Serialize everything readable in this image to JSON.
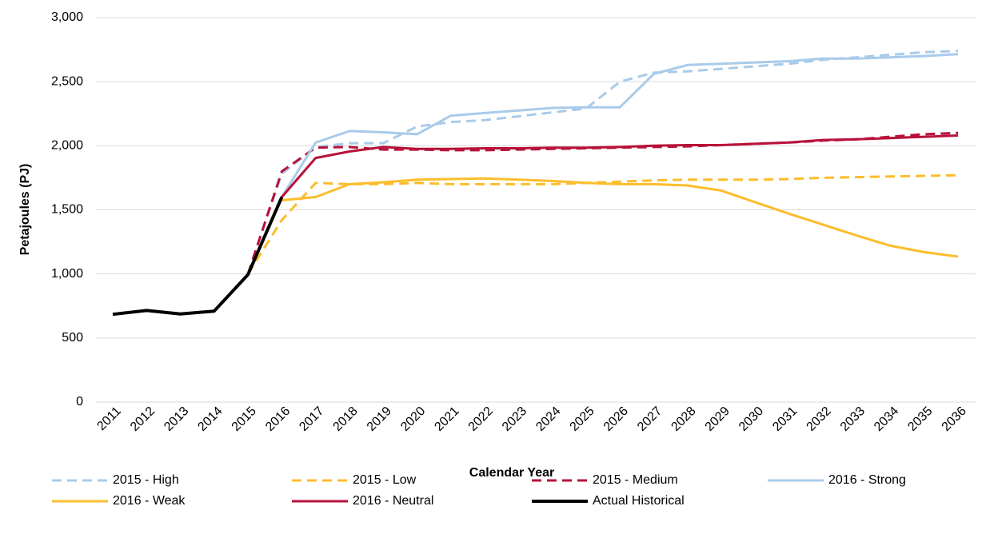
{
  "chart_data": {
    "type": "line",
    "y_label": "Petajoules (PJ)",
    "x_label": "Calendar Year",
    "categories": [
      "2011",
      "2012",
      "2013",
      "2014",
      "2015",
      "2016",
      "2017",
      "2018",
      "2019",
      "2020",
      "2021",
      "2022",
      "2023",
      "2024",
      "2025",
      "2026",
      "2027",
      "2028",
      "2029",
      "2030",
      "2031",
      "2032",
      "2033",
      "2034",
      "2035",
      "2036"
    ],
    "ylim": [
      0,
      3000
    ],
    "yticks": [
      0,
      500,
      {
        "value": 1000,
        "label": "1,000"
      },
      {
        "value": 1500,
        "label": "1,500"
      },
      {
        "value": 2000,
        "label": "2,000"
      },
      {
        "value": 2500,
        "label": "2,500"
      },
      {
        "value": 3000,
        "label": "3,000"
      }
    ],
    "grid": true,
    "legend": "bottom",
    "series": [
      {
        "name": "2015 - High",
        "color": "#a9cbea",
        "dashed": true,
        "values": [
          null,
          null,
          null,
          null,
          1000,
          1780,
          1990,
          2020,
          2020,
          2150,
          2185,
          2200,
          2230,
          2260,
          2290,
          2500,
          2570,
          2580,
          2600,
          2620,
          2640,
          2670,
          2690,
          2710,
          2730,
          2740
        ]
      },
      {
        "name": "2015 - Low",
        "color": "#fcbd2c",
        "dashed": true,
        "values": [
          null,
          null,
          null,
          null,
          1000,
          1420,
          1710,
          1700,
          1700,
          1710,
          1700,
          1700,
          1700,
          1700,
          1710,
          1720,
          1730,
          1735,
          1735,
          1735,
          1740,
          1750,
          1755,
          1760,
          1765,
          1770
        ]
      },
      {
        "name": "2015 - Medium",
        "color": "#b8123a",
        "dashed": true,
        "values": [
          null,
          null,
          null,
          null,
          1000,
          1800,
          1985,
          1990,
          1970,
          1970,
          1965,
          1965,
          1970,
          1975,
          1980,
          1985,
          1990,
          1995,
          2005,
          2015,
          2025,
          2040,
          2050,
          2070,
          2090,
          2100
        ]
      },
      {
        "name": "2016 - Strong",
        "color": "#a9cbea",
        "dashed": false,
        "values": [
          null,
          null,
          null,
          null,
          null,
          1600,
          2025,
          2115,
          2105,
          2090,
          2235,
          2255,
          2275,
          2295,
          2300,
          2300,
          2560,
          2630,
          2640,
          2650,
          2660,
          2680,
          2680,
          2690,
          2700,
          2715
        ]
      },
      {
        "name": "2016 - Weak",
        "color": "#fcbd2c",
        "dashed": false,
        "values": [
          null,
          null,
          null,
          null,
          null,
          1575,
          1600,
          1700,
          1715,
          1735,
          1740,
          1745,
          1735,
          1725,
          1710,
          1700,
          1700,
          1690,
          1650,
          1560,
          1470,
          1385,
          1300,
          1220,
          1170,
          1135
        ]
      },
      {
        "name": "2016 - Neutral",
        "color": "#b8123a",
        "dashed": false,
        "values": [
          null,
          null,
          null,
          null,
          null,
          1600,
          1905,
          1955,
          1990,
          1975,
          1975,
          1980,
          1980,
          1985,
          1985,
          1990,
          2000,
          2005,
          2005,
          2015,
          2025,
          2045,
          2050,
          2060,
          2070,
          2080
        ]
      },
      {
        "name": "Actual Historical",
        "color": "#000000",
        "dashed": false,
        "width": 4,
        "values": [
          685,
          715,
          688,
          710,
          995,
          1600,
          null,
          null,
          null,
          null,
          null,
          null,
          null,
          null,
          null,
          null,
          null,
          null,
          null,
          null,
          null,
          null,
          null,
          null,
          null,
          null
        ]
      }
    ]
  }
}
